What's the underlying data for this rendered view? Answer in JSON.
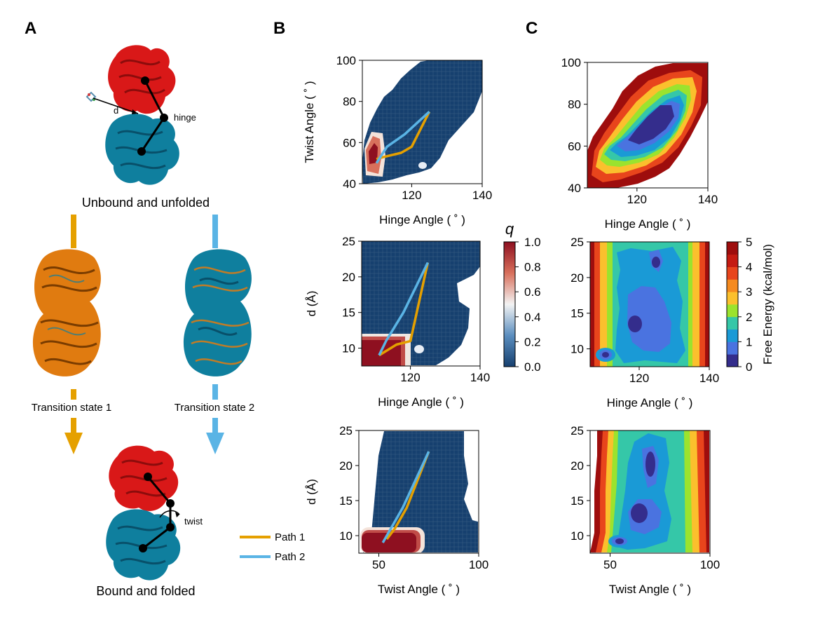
{
  "panel_letters": [
    "A",
    "B",
    "C"
  ],
  "panel_a": {
    "top_caption": "Unbound and unfolded",
    "bottom_caption": "Bound and folded",
    "ts1_caption": "Transition state 1",
    "ts2_caption": "Transition state 2",
    "top_labels": {
      "distance": "d",
      "hinge": "hinge"
    },
    "bottom_labels": {
      "twist": "twist"
    },
    "legend": [
      {
        "label": "Path 1",
        "color": "#E5A000"
      },
      {
        "label": "Path 2",
        "color": "#5AB4E5"
      }
    ]
  },
  "colors": {
    "path1": "#E5A000",
    "path2": "#5AB4E5",
    "low_q": "#16406f",
    "high_q": "#8e1020",
    "domain_top": "#d91818",
    "domain_bottom": "#0f7f9e",
    "ts_orange": "#e07b10"
  },
  "colorbar_q": {
    "title": "q",
    "ticks": [
      "1.0",
      "0.8",
      "0.6",
      "0.4",
      "0.2",
      "0.0"
    ]
  },
  "colorbar_fe": {
    "label": "Free Energy (kcal/mol)",
    "ticks": [
      "5",
      "4",
      "3",
      "2",
      "1",
      "0"
    ]
  },
  "chart_data": [
    {
      "id": "B1",
      "type": "heatmap",
      "title": "",
      "xlabel": "Hinge Angle ( ˚ )",
      "ylabel": "Twist Angle ( ˚ )",
      "xlim": [
        106,
        140
      ],
      "ylim": [
        40,
        100
      ],
      "xticks": [
        120,
        140
      ],
      "yticks": [
        40,
        60,
        80,
        100
      ],
      "xtick_labels": [
        "120",
        "140"
      ],
      "ytick_labels": [
        "40",
        "60",
        "80",
        "100"
      ],
      "color_variable": "q",
      "series": [
        {
          "name": "Path 1",
          "x": [
            110,
            112,
            117,
            120,
            125
          ],
          "y": [
            52,
            53,
            55,
            58,
            75
          ]
        },
        {
          "name": "Path 2",
          "x": [
            110,
            113,
            118,
            125
          ],
          "y": [
            50,
            58,
            64,
            75
          ]
        }
      ]
    },
    {
      "id": "B2",
      "type": "heatmap",
      "title": "",
      "xlabel": "Hinge Angle ( ˚ )",
      "ylabel": "d (Å)",
      "xlim": [
        106,
        140
      ],
      "ylim": [
        7.5,
        25
      ],
      "xticks": [
        120,
        140
      ],
      "yticks": [
        10,
        15,
        20,
        25
      ],
      "xtick_labels": [
        "120",
        "140"
      ],
      "ytick_labels": [
        "10",
        "15",
        "20",
        "25"
      ],
      "color_variable": "q",
      "series": [
        {
          "name": "Path 1",
          "x": [
            111,
            116,
            120,
            125
          ],
          "y": [
            9,
            10.5,
            11,
            22
          ]
        },
        {
          "name": "Path 2",
          "x": [
            111,
            113,
            118,
            125
          ],
          "y": [
            9,
            11,
            15,
            22
          ]
        }
      ]
    },
    {
      "id": "B3",
      "type": "heatmap",
      "title": "",
      "xlabel": "Twist Angle ( ˚ )",
      "ylabel": "d (Å)",
      "xlim": [
        40,
        100
      ],
      "ylim": [
        7.5,
        25
      ],
      "xticks": [
        50,
        100
      ],
      "yticks": [
        10,
        15,
        20,
        25
      ],
      "xtick_labels": [
        "50",
        "100"
      ],
      "ytick_labels": [
        "10",
        "15",
        "20",
        "25"
      ],
      "color_variable": "q",
      "series": [
        {
          "name": "Path 1",
          "x": [
            54,
            58,
            64,
            75
          ],
          "y": [
            9.5,
            11,
            14,
            22
          ]
        },
        {
          "name": "Path 2",
          "x": [
            52,
            56,
            62,
            75
          ],
          "y": [
            9,
            11,
            14,
            22
          ]
        }
      ]
    },
    {
      "id": "C1",
      "type": "heatmap",
      "title": "",
      "xlabel": "Hinge Angle ( ˚ )",
      "ylabel": "",
      "xlim": [
        106,
        140
      ],
      "ylim": [
        40,
        100
      ],
      "xticks": [
        120,
        140
      ],
      "yticks": [
        40,
        60,
        80,
        100
      ],
      "xtick_labels": [
        "120",
        "140"
      ],
      "ytick_labels": [
        "40",
        "60",
        "80",
        "100"
      ],
      "color_variable": "Free Energy (kcal/mol)"
    },
    {
      "id": "C2",
      "type": "heatmap",
      "title": "",
      "xlabel": "Hinge Angle ( ˚ )",
      "ylabel": "",
      "xlim": [
        106,
        140
      ],
      "ylim": [
        7.5,
        25
      ],
      "xticks": [
        120,
        140
      ],
      "yticks": [
        10,
        15,
        20,
        25
      ],
      "xtick_labels": [
        "120",
        "140"
      ],
      "ytick_labels": [
        "10",
        "15",
        "20",
        "25"
      ],
      "color_variable": "Free Energy (kcal/mol)"
    },
    {
      "id": "C3",
      "type": "heatmap",
      "title": "",
      "xlabel": "Twist Angle ( ˚ )",
      "ylabel": "",
      "xlim": [
        40,
        100
      ],
      "ylim": [
        7.5,
        25
      ],
      "xticks": [
        50,
        100
      ],
      "yticks": [
        10,
        15,
        20,
        25
      ],
      "xtick_labels": [
        "50",
        "100"
      ],
      "ytick_labels": [
        "10",
        "15",
        "20",
        "25"
      ],
      "color_variable": "Free Energy (kcal/mol)"
    }
  ]
}
